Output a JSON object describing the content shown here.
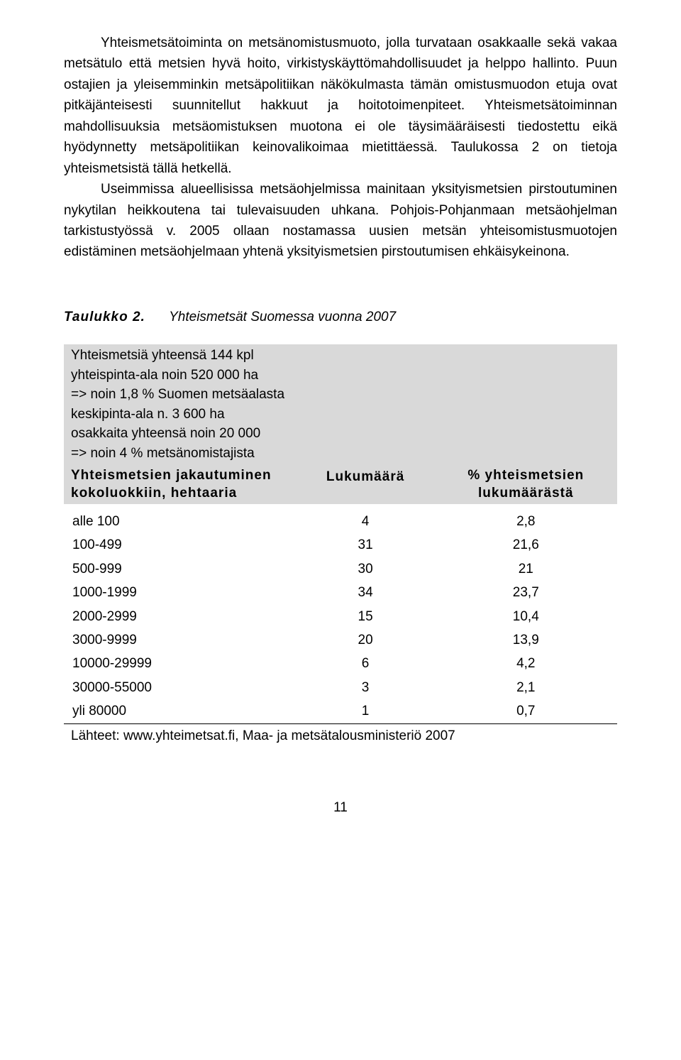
{
  "paragraphs": {
    "p1": "Yhteismetsätoiminta on metsänomistusmuoto, jolla turvataan osakkaalle sekä vakaa metsätulo että metsien hyvä hoito, virkistyskäyttömahdollisuudet ja helppo hallinto. Puun ostajien ja yleisemminkin metsäpolitiikan näkökulmasta tämän omistusmuodon etuja ovat pitkäjänteisesti suunnitellut hakkuut ja hoitotoimenpiteet. Yhteismetsätoiminnan mahdollisuuksia metsäomistuksen muotona ei ole täysimääräisesti tiedostettu eikä hyödynnetty metsäpolitiikan keinovalikoimaa mietittäessä. Taulukossa 2 on tietoja yhteismetsistä tällä hetkellä.",
    "p2": "Useimmissa alueellisissa metsäohjelmissa mainitaan yksityismetsien pirstoutuminen nykytilan heikkoutena tai tulevaisuuden uhkana. Pohjois-Pohjanmaan metsäohjelman tarkistustyössä v. 2005 ollaan nostamassa uusien metsän yhteisomistusmuotojen edistäminen metsäohjelmaan yhtenä yksityismetsien pirstoutumisen ehkäisykeinona."
  },
  "table": {
    "caption_label": "Taulukko 2.",
    "caption_title": "Yhteismetsät Suomessa vuonna 2007",
    "summary_lines": [
      "Yhteismetsiä yhteensä 144 kpl",
      "yhteispinta-ala noin 520 000 ha",
      "=> noin 1,8 % Suomen metsäalasta",
      "keskipinta-ala n. 3 600 ha",
      "osakkaita yhteensä noin 20 000",
      "=> noin 4 % metsänomistajista"
    ],
    "headers": {
      "col1": "Yhteismetsien jakautuminen kokoluokkiin, hehtaaria",
      "col2": "Lukumäärä",
      "col3": "% yhteismetsien lukumäärästä"
    },
    "rows": [
      {
        "range": "alle 100",
        "count": "4",
        "pct": "2,8"
      },
      {
        "range": "100-499",
        "count": "31",
        "pct": "21,6"
      },
      {
        "range": "500-999",
        "count": "30",
        "pct": "21"
      },
      {
        "range": "1000-1999",
        "count": "34",
        "pct": "23,7"
      },
      {
        "range": "2000-2999",
        "count": "15",
        "pct": "10,4"
      },
      {
        "range": "3000-9999",
        "count": "20",
        "pct": "13,9"
      },
      {
        "range": "10000-29999",
        "count": "6",
        "pct": "4,2"
      },
      {
        "range": "30000-55000",
        "count": "3",
        "pct": "2,1"
      },
      {
        "range": "yli 80000",
        "count": "1",
        "pct": "0,7"
      }
    ],
    "source": "Lähteet: www.yhteimetsat.fi, Maa- ja metsätalousministeriö 2007"
  },
  "page_number": "11",
  "colors": {
    "header_bg": "#d9d9d9",
    "text": "#000000",
    "page_bg": "#ffffff"
  }
}
